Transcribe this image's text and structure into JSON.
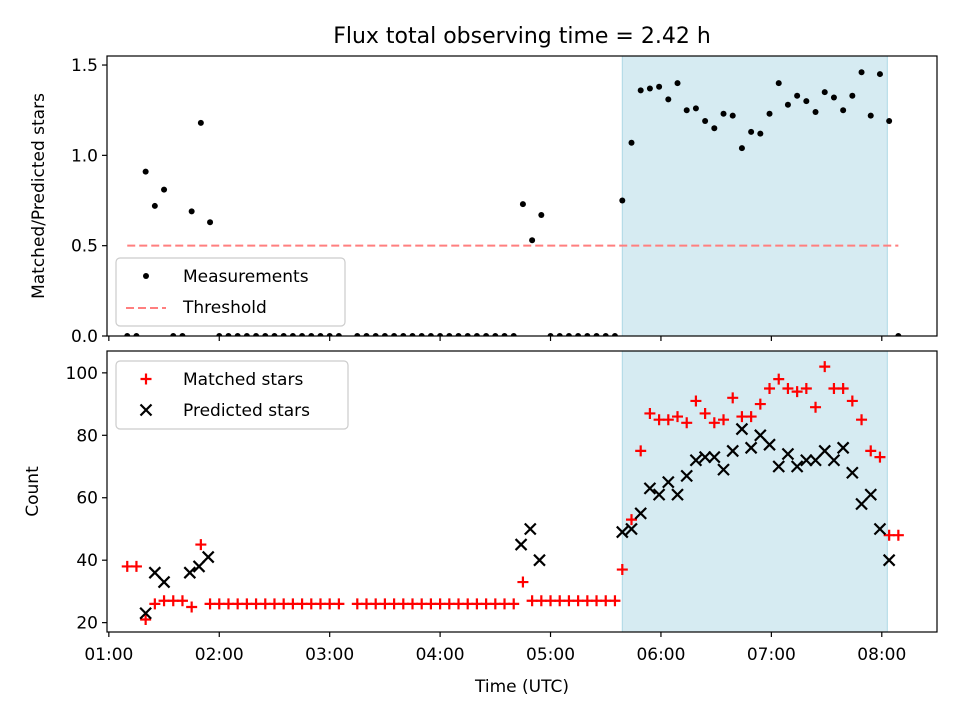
{
  "title": "Flux total observing time = 2.42 h",
  "chart_data": [
    {
      "type": "scatter",
      "panel": "top",
      "title": "Flux total observing time = 2.42 h",
      "xlabel": "",
      "ylabel": "Matched/Predicted stars",
      "xlim": [
        "00:59",
        "08:30"
      ],
      "ylim": [
        0,
        1.55
      ],
      "yticks": [
        "0.0",
        "0.5",
        "1.0",
        "1.5"
      ],
      "highlight_span": {
        "start": "05:39",
        "end": "08:03",
        "color": "#add8e6"
      },
      "threshold": {
        "name": "Threshold",
        "value": 0.5,
        "start": "01:10",
        "end": "08:09",
        "color": "#ff7f7f",
        "style": "dashed"
      },
      "legend": {
        "placement": "lower-left",
        "entries": [
          "Measurements",
          "Threshold"
        ]
      },
      "series": [
        {
          "name": "Measurements",
          "marker": "dot",
          "color": "#000000",
          "x": [
            "01:10",
            "01:15",
            "01:20",
            "01:25",
            "01:30",
            "01:35",
            "01:40",
            "01:45",
            "01:50",
            "01:55",
            "02:00",
            "02:05",
            "02:10",
            "02:15",
            "02:20",
            "02:25",
            "02:30",
            "02:35",
            "02:40",
            "02:45",
            "02:50",
            "02:55",
            "03:00",
            "03:05",
            "03:15",
            "03:20",
            "03:25",
            "03:30",
            "03:35",
            "03:40",
            "03:45",
            "03:50",
            "03:55",
            "04:00",
            "04:05",
            "04:10",
            "04:15",
            "04:20",
            "04:25",
            "04:30",
            "04:35",
            "04:40",
            "04:45",
            "04:50",
            "04:55",
            "05:00",
            "05:05",
            "05:10",
            "05:15",
            "05:20",
            "05:25",
            "05:30",
            "05:35",
            "05:39",
            "05:44",
            "05:49",
            "05:54",
            "05:59",
            "06:04",
            "06:09",
            "06:14",
            "06:19",
            "06:24",
            "06:29",
            "06:34",
            "06:39",
            "06:44",
            "06:49",
            "06:54",
            "06:59",
            "07:04",
            "07:09",
            "07:14",
            "07:19",
            "07:24",
            "07:29",
            "07:34",
            "07:39",
            "07:44",
            "07:49",
            "07:54",
            "07:59",
            "08:04",
            "08:09"
          ],
          "y": [
            0,
            0,
            0.91,
            0.72,
            0.81,
            0,
            0,
            0.69,
            1.18,
            0.63,
            0,
            0,
            0,
            0,
            0,
            0,
            0,
            0,
            0,
            0,
            0,
            0,
            0,
            0,
            0,
            0,
            0,
            0,
            0,
            0,
            0,
            0,
            0,
            0,
            0,
            0,
            0,
            0,
            0,
            0,
            0,
            0,
            0.73,
            0.53,
            0.67,
            0,
            0,
            0,
            0,
            0,
            0,
            0,
            0,
            0.75,
            1.07,
            1.36,
            1.37,
            1.38,
            1.31,
            1.4,
            1.25,
            1.26,
            1.19,
            1.15,
            1.23,
            1.22,
            1.04,
            1.13,
            1.12,
            1.23,
            1.4,
            1.28,
            1.33,
            1.3,
            1.24,
            1.35,
            1.32,
            1.25,
            1.33,
            1.46,
            1.22,
            1.45,
            1.19,
            0
          ]
        }
      ]
    },
    {
      "type": "scatter",
      "panel": "bottom",
      "xlabel": "Time (UTC)",
      "ylabel": "Count",
      "xlim": [
        "00:59",
        "08:30"
      ],
      "ylim": [
        17,
        107
      ],
      "xticks": [
        "01:00",
        "02:00",
        "03:00",
        "04:00",
        "05:00",
        "06:00",
        "07:00",
        "08:00"
      ],
      "yticks": [
        "20",
        "40",
        "60",
        "80",
        "100"
      ],
      "highlight_span": {
        "start": "05:39",
        "end": "08:03",
        "color": "#add8e6"
      },
      "legend": {
        "placement": "upper-left",
        "entries": [
          "Matched stars",
          "Predicted stars"
        ]
      },
      "series": [
        {
          "name": "Matched stars",
          "marker": "plus",
          "color": "#ff0000",
          "x": [
            "01:10",
            "01:15",
            "01:20",
            "01:25",
            "01:30",
            "01:35",
            "01:40",
            "01:45",
            "01:50",
            "01:55",
            "02:00",
            "02:05",
            "02:10",
            "02:15",
            "02:20",
            "02:25",
            "02:30",
            "02:35",
            "02:40",
            "02:45",
            "02:50",
            "02:55",
            "03:00",
            "03:05",
            "03:15",
            "03:20",
            "03:25",
            "03:30",
            "03:35",
            "03:40",
            "03:45",
            "03:50",
            "03:55",
            "04:00",
            "04:05",
            "04:10",
            "04:15",
            "04:20",
            "04:25",
            "04:30",
            "04:35",
            "04:40",
            "04:45",
            "04:50",
            "04:55",
            "05:00",
            "05:05",
            "05:10",
            "05:15",
            "05:20",
            "05:25",
            "05:30",
            "05:35",
            "05:39",
            "05:44",
            "05:49",
            "05:54",
            "05:59",
            "06:04",
            "06:09",
            "06:14",
            "06:19",
            "06:24",
            "06:29",
            "06:34",
            "06:39",
            "06:44",
            "06:49",
            "06:54",
            "06:59",
            "07:04",
            "07:09",
            "07:14",
            "07:19",
            "07:24",
            "07:29",
            "07:34",
            "07:39",
            "07:44",
            "07:49",
            "07:54",
            "07:59",
            "08:04",
            "08:09"
          ],
          "y": [
            38,
            38,
            21,
            26,
            27,
            27,
            27,
            25,
            45,
            26,
            26,
            26,
            26,
            26,
            26,
            26,
            26,
            26,
            26,
            26,
            26,
            26,
            26,
            26,
            26,
            26,
            26,
            26,
            26,
            26,
            26,
            26,
            26,
            26,
            26,
            26,
            26,
            26,
            26,
            26,
            26,
            26,
            33,
            27,
            27,
            27,
            27,
            27,
            27,
            27,
            27,
            27,
            27,
            37,
            53,
            75,
            87,
            85,
            85,
            86,
            84,
            91,
            87,
            84,
            85,
            92,
            86,
            86,
            90,
            95,
            98,
            95,
            94,
            95,
            89,
            102,
            95,
            95,
            91,
            85,
            75,
            73,
            48,
            48
          ]
        },
        {
          "name": "Predicted stars",
          "marker": "x",
          "color": "#000000",
          "x": [
            "01:20",
            "01:25",
            "01:30",
            "01:44",
            "01:49",
            "01:54",
            "04:44",
            "04:49",
            "04:54",
            "05:39",
            "05:44",
            "05:49",
            "05:54",
            "05:59",
            "06:04",
            "06:09",
            "06:14",
            "06:19",
            "06:24",
            "06:29",
            "06:34",
            "06:39",
            "06:44",
            "06:49",
            "06:54",
            "06:59",
            "07:04",
            "07:09",
            "07:14",
            "07:19",
            "07:24",
            "07:29",
            "07:34",
            "07:39",
            "07:44",
            "07:49",
            "07:54",
            "07:59",
            "08:04"
          ],
          "y": [
            23,
            36,
            33,
            36,
            38,
            41,
            45,
            50,
            40,
            49,
            50,
            55,
            63,
            61,
            65,
            61,
            67,
            72,
            73,
            73,
            69,
            75,
            82,
            76,
            80,
            77,
            70,
            74,
            70,
            72,
            72,
            75,
            72,
            76,
            68,
            58,
            61,
            50,
            40
          ]
        }
      ]
    }
  ]
}
